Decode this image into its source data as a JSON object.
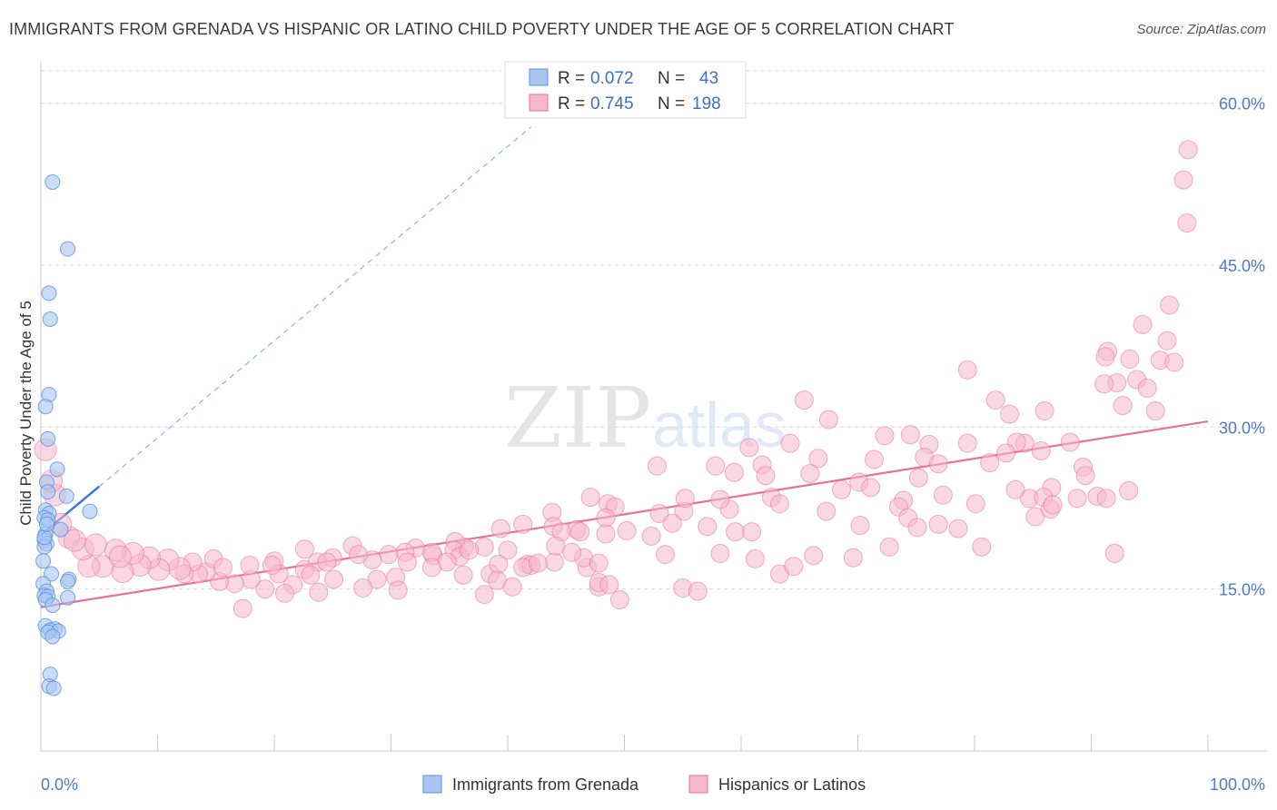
{
  "title": "IMMIGRANTS FROM GRENADA VS HISPANIC OR LATINO CHILD POVERTY UNDER THE AGE OF 5 CORRELATION CHART",
  "source": "Source: ZipAtlas.com",
  "watermark": "ZIPatlas",
  "legend": {
    "r_label": "R =",
    "n_label": "N =",
    "rows": [
      {
        "r": "0.072",
        "n": "43"
      },
      {
        "r": "0.745",
        "n": "198"
      }
    ]
  },
  "colors": {
    "blue": "#5b8fe0",
    "blue_fill": "#a9c6f0",
    "pink": "#e8709a",
    "pink_fill": "#f5b8cc",
    "tick": "#4a7bd0"
  },
  "chart_data": {
    "type": "scatter",
    "xlabel": "",
    "ylabel": "Child Poverty Under the Age of 5",
    "xlim": [
      0,
      100
    ],
    "ylim": [
      0,
      63
    ],
    "x_tick_labels": [
      "0.0%",
      "100.0%"
    ],
    "y_ticks": [
      15,
      30,
      45,
      60
    ],
    "y_tick_labels": [
      "15.0%",
      "30.0%",
      "45.0%",
      "60.0%"
    ],
    "grid": true,
    "series": [
      {
        "name": "Immigrants from Grenada",
        "color": "#5b8fe0",
        "points": [
          [
            1.0,
            52.7
          ],
          [
            2.3,
            46.5
          ],
          [
            0.7,
            42.4
          ],
          [
            0.8,
            40.0
          ],
          [
            0.7,
            33.0
          ],
          [
            0.4,
            31.9
          ],
          [
            0.6,
            28.9
          ],
          [
            1.4,
            26.1
          ],
          [
            0.5,
            24.9
          ],
          [
            0.6,
            24.0
          ],
          [
            2.2,
            23.6
          ],
          [
            0.4,
            22.3
          ],
          [
            0.7,
            22.0
          ],
          [
            0.3,
            21.6
          ],
          [
            0.6,
            21.4
          ],
          [
            4.2,
            22.2
          ],
          [
            0.4,
            20.1
          ],
          [
            0.3,
            19.5
          ],
          [
            0.5,
            19.2
          ],
          [
            0.3,
            18.9
          ],
          [
            0.9,
            16.4
          ],
          [
            2.4,
            15.9
          ],
          [
            2.3,
            15.7
          ],
          [
            0.2,
            15.5
          ],
          [
            0.5,
            14.8
          ],
          [
            0.3,
            14.4
          ],
          [
            0.6,
            14.3
          ],
          [
            2.3,
            14.2
          ],
          [
            0.4,
            14.0
          ],
          [
            1.0,
            13.5
          ],
          [
            0.4,
            11.6
          ],
          [
            1.2,
            11.3
          ],
          [
            0.8,
            11.2
          ],
          [
            1.5,
            11.1
          ],
          [
            0.6,
            11.0
          ],
          [
            1.0,
            10.6
          ],
          [
            0.8,
            7.1
          ],
          [
            0.7,
            6.0
          ],
          [
            1.1,
            5.8
          ],
          [
            0.3,
            19.8
          ],
          [
            0.5,
            21.0
          ],
          [
            1.7,
            20.5
          ],
          [
            0.2,
            17.6
          ]
        ]
      },
      {
        "name": "Hispanics or Latinos",
        "color": "#e8709a",
        "points": [
          [
            98.3,
            55.7
          ],
          [
            97.9,
            52.9
          ],
          [
            98.2,
            48.9
          ],
          [
            96.7,
            41.3
          ],
          [
            94.4,
            39.5
          ],
          [
            96.5,
            38.0
          ],
          [
            91.4,
            37.0
          ],
          [
            91.2,
            36.5
          ],
          [
            95.9,
            36.2
          ],
          [
            93.3,
            36.3
          ],
          [
            97.1,
            36.0
          ],
          [
            79.4,
            35.3
          ],
          [
            93.9,
            34.4
          ],
          [
            92.2,
            34.1
          ],
          [
            91.1,
            34.0
          ],
          [
            94.8,
            33.6
          ],
          [
            81.8,
            32.5
          ],
          [
            65.4,
            32.5
          ],
          [
            86.0,
            31.5
          ],
          [
            95.5,
            31.5
          ],
          [
            83.0,
            31.2
          ],
          [
            92.7,
            32.0
          ],
          [
            67.5,
            30.7
          ],
          [
            74.5,
            29.3
          ],
          [
            72.3,
            29.2
          ],
          [
            79.4,
            28.5
          ],
          [
            88.2,
            28.6
          ],
          [
            84.3,
            28.5
          ],
          [
            76.1,
            28.4
          ],
          [
            83.6,
            28.6
          ],
          [
            64.2,
            28.5
          ],
          [
            60.7,
            28.1
          ],
          [
            85.7,
            27.8
          ],
          [
            82.7,
            27.6
          ],
          [
            75.7,
            27.2
          ],
          [
            66.6,
            27.1
          ],
          [
            81.3,
            26.7
          ],
          [
            89.3,
            26.3
          ],
          [
            76.9,
            26.6
          ],
          [
            61.8,
            26.5
          ],
          [
            57.8,
            26.4
          ],
          [
            71.4,
            27.0
          ],
          [
            59.4,
            25.8
          ],
          [
            75.2,
            25.3
          ],
          [
            65.9,
            25.7
          ],
          [
            52.8,
            26.4
          ],
          [
            62.1,
            25.5
          ],
          [
            68.6,
            24.2
          ],
          [
            70.1,
            24.9
          ],
          [
            86.6,
            24.4
          ],
          [
            73.9,
            23.2
          ],
          [
            77.3,
            23.7
          ],
          [
            90.5,
            23.6
          ],
          [
            80.1,
            22.9
          ],
          [
            84.7,
            23.4
          ],
          [
            85.9,
            23.5
          ],
          [
            88.8,
            23.4
          ],
          [
            73.5,
            22.6
          ],
          [
            62.6,
            23.5
          ],
          [
            71.1,
            24.4
          ],
          [
            55.1,
            22.2
          ],
          [
            67.3,
            22.2
          ],
          [
            63.3,
            22.9
          ],
          [
            59.0,
            22.4
          ],
          [
            58.2,
            23.3
          ],
          [
            55.2,
            23.4
          ],
          [
            47.1,
            23.5
          ],
          [
            48.6,
            22.9
          ],
          [
            53.0,
            22.0
          ],
          [
            49.2,
            22.6
          ],
          [
            48.4,
            21.6
          ],
          [
            50.2,
            20.4
          ],
          [
            54.1,
            21.1
          ],
          [
            52.3,
            19.9
          ],
          [
            57.1,
            20.8
          ],
          [
            59.5,
            20.3
          ],
          [
            70.2,
            20.9
          ],
          [
            76.9,
            21.0
          ],
          [
            85.2,
            21.7
          ],
          [
            74.3,
            21.6
          ],
          [
            75.1,
            20.7
          ],
          [
            43.8,
            22.1
          ],
          [
            41.3,
            21.0
          ],
          [
            45.9,
            20.5
          ],
          [
            43.9,
            20.8
          ],
          [
            44.6,
            20.3
          ],
          [
            48.4,
            20.1
          ],
          [
            39.4,
            20.6
          ],
          [
            46.2,
            20.3
          ],
          [
            38.0,
            18.9
          ],
          [
            40.0,
            18.6
          ],
          [
            36.3,
            18.9
          ],
          [
            35.5,
            19.4
          ],
          [
            35.4,
            18.6
          ],
          [
            35.9,
            18.0
          ],
          [
            36.7,
            18.6
          ],
          [
            33.6,
            18.1
          ],
          [
            33.5,
            18.4
          ],
          [
            32.1,
            18.8
          ],
          [
            31.2,
            18.4
          ],
          [
            34.8,
            17.5
          ],
          [
            33.5,
            17.0
          ],
          [
            31.4,
            17.5
          ],
          [
            29.8,
            18.2
          ],
          [
            28.4,
            17.7
          ],
          [
            26.7,
            19.0
          ],
          [
            27.2,
            18.2
          ],
          [
            25.0,
            17.9
          ],
          [
            23.7,
            17.5
          ],
          [
            22.6,
            16.8
          ],
          [
            21.6,
            15.4
          ],
          [
            20.9,
            14.6
          ],
          [
            19.2,
            15.0
          ],
          [
            18.0,
            15.9
          ],
          [
            16.6,
            15.5
          ],
          [
            15.3,
            15.7
          ],
          [
            14.2,
            16.6
          ],
          [
            13.5,
            16.4
          ],
          [
            13.0,
            17.5
          ],
          [
            12.3,
            16.4
          ],
          [
            11.9,
            16.9
          ],
          [
            10.9,
            17.7
          ],
          [
            10.1,
            16.8
          ],
          [
            9.3,
            17.9
          ],
          [
            8.5,
            17.2
          ],
          [
            7.9,
            18.3
          ],
          [
            7.0,
            16.6
          ],
          [
            6.4,
            18.6
          ],
          [
            5.3,
            17.1
          ],
          [
            4.1,
            17.1
          ],
          [
            2.4,
            19.8
          ],
          [
            1.7,
            21.0
          ],
          [
            1.2,
            23.7
          ],
          [
            0.9,
            25.0
          ],
          [
            0.4,
            27.9
          ],
          [
            3.6,
            18.7
          ],
          [
            4.7,
            19.1
          ],
          [
            2.9,
            19.5
          ],
          [
            6.8,
            18.0
          ],
          [
            14.8,
            17.8
          ],
          [
            17.3,
            13.2
          ],
          [
            15.6,
            17.0
          ],
          [
            20.0,
            17.6
          ],
          [
            20.4,
            16.4
          ],
          [
            19.8,
            17.2
          ],
          [
            23.1,
            16.3
          ],
          [
            23.8,
            14.7
          ],
          [
            22.6,
            18.7
          ],
          [
            24.5,
            17.5
          ],
          [
            25.1,
            15.9
          ],
          [
            28.8,
            15.9
          ],
          [
            27.6,
            15.1
          ],
          [
            30.4,
            16.1
          ],
          [
            30.6,
            14.9
          ],
          [
            36.2,
            16.3
          ],
          [
            38.5,
            16.4
          ],
          [
            39.2,
            17.3
          ],
          [
            41.7,
            17.3
          ],
          [
            42.0,
            17.2
          ],
          [
            41.3,
            17.0
          ],
          [
            44.0,
            17.5
          ],
          [
            46.8,
            17.0
          ],
          [
            47.8,
            15.2
          ],
          [
            47.8,
            15.6
          ],
          [
            42.6,
            17.4
          ],
          [
            39.1,
            15.8
          ],
          [
            38.0,
            14.5
          ],
          [
            40.4,
            15.2
          ],
          [
            46.5,
            17.9
          ],
          [
            45.5,
            18.4
          ],
          [
            44.1,
            19.0
          ],
          [
            47.8,
            17.4
          ],
          [
            48.7,
            15.4
          ],
          [
            53.5,
            18.2
          ],
          [
            55.0,
            15.1
          ],
          [
            49.6,
            14.0
          ],
          [
            56.3,
            14.8
          ],
          [
            58.2,
            18.3
          ],
          [
            61.2,
            17.8
          ],
          [
            63.3,
            16.4
          ],
          [
            64.5,
            17.1
          ],
          [
            66.2,
            18.1
          ],
          [
            69.6,
            17.9
          ],
          [
            72.7,
            18.9
          ],
          [
            80.6,
            18.9
          ],
          [
            78.6,
            20.6
          ],
          [
            60.9,
            20.3
          ],
          [
            92.0,
            18.3
          ],
          [
            86.5,
            22.4
          ],
          [
            91.3,
            23.4
          ],
          [
            86.7,
            22.8
          ],
          [
            93.2,
            24.1
          ],
          [
            83.5,
            24.2
          ],
          [
            89.5,
            25.5
          ],
          [
            17.9,
            17.2
          ]
        ]
      }
    ],
    "trendlines": [
      {
        "series": "Immigrants from Grenada",
        "x": [
          0,
          5.0
        ],
        "y": [
          20.0,
          24.5
        ],
        "dashed_extension_to_x": 42
      }
    ]
  },
  "bottom_legend": [
    "Immigrants from Grenada",
    "Hispanics or Latinos"
  ]
}
